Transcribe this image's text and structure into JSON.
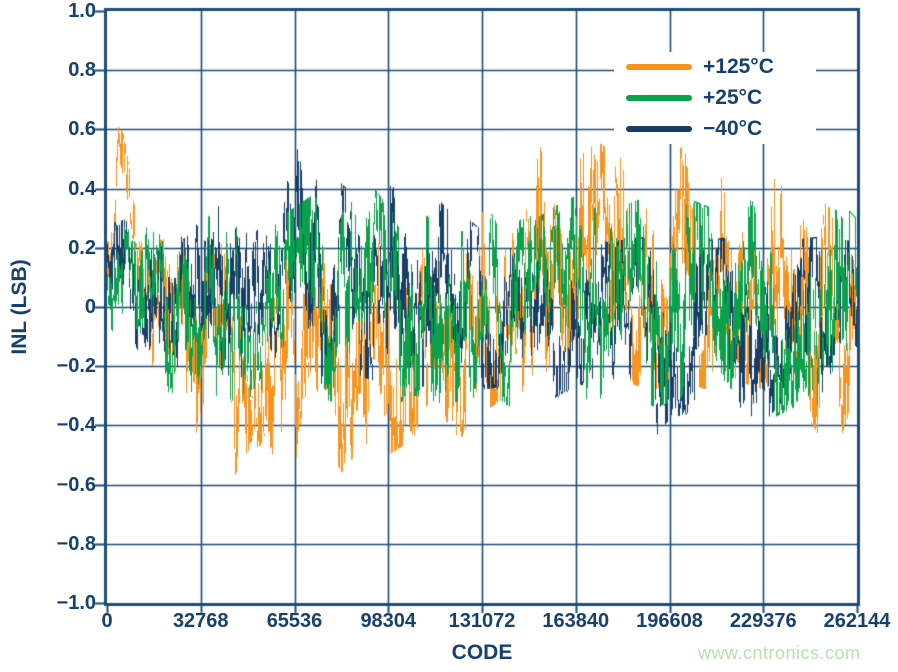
{
  "page": {
    "watermark_text": "www.cntronics.com",
    "watermark_color": "#b9dfb2"
  },
  "chart_data": {
    "type": "line",
    "title": "",
    "xlabel": "CODE",
    "ylabel": "INL (LSB)",
    "xlim": [
      0,
      262144
    ],
    "ylim": [
      -1.0,
      1.0
    ],
    "grid": true,
    "legend_position": "top-right",
    "axis_color": "#1b4b78",
    "text_color": "#16416f",
    "background_color": "#ffffff",
    "xticks": {
      "values": [
        0,
        32768,
        65536,
        98304,
        131072,
        163840,
        196608,
        229376,
        262144
      ],
      "labels": [
        "0",
        "32768",
        "65536",
        "98304",
        "131072",
        "163840",
        "196608",
        "229376",
        "262144"
      ]
    },
    "yticks": {
      "values": [
        1.0,
        0.8,
        0.6,
        0.4,
        0.2,
        0,
        -0.2,
        -0.4,
        -0.6,
        -0.8,
        -1.0
      ],
      "labels": [
        "1.0",
        "0.8",
        "0.6",
        "0.4",
        "0.2",
        "0",
        "−0.2",
        "−0.4",
        "−0.6",
        "−0.8",
        "−1.0"
      ]
    },
    "draw_order": [
      0,
      2,
      1
    ],
    "series": [
      {
        "name": "+125°C",
        "color": "#F7941E",
        "seed": 101,
        "envelope_upper": [
          [
            0,
            0.3
          ],
          [
            2000,
            0.44
          ],
          [
            4000,
            0.62
          ],
          [
            6000,
            0.58
          ],
          [
            9000,
            0.4
          ],
          [
            12000,
            0.26
          ],
          [
            16000,
            0.22
          ],
          [
            24000,
            0.24
          ],
          [
            32768,
            0.2
          ],
          [
            45000,
            0.22
          ],
          [
            55000,
            0.18
          ],
          [
            65536,
            0.25
          ],
          [
            75000,
            0.2
          ],
          [
            85000,
            0.22
          ],
          [
            98304,
            0.3
          ],
          [
            110000,
            0.26
          ],
          [
            120000,
            0.33
          ],
          [
            131072,
            0.4
          ],
          [
            140000,
            0.46
          ],
          [
            151000,
            0.55
          ],
          [
            160000,
            0.48
          ],
          [
            170000,
            0.57
          ],
          [
            180000,
            0.5
          ],
          [
            190000,
            0.46
          ],
          [
            196608,
            0.52
          ],
          [
            205000,
            0.56
          ],
          [
            215000,
            0.48
          ],
          [
            225000,
            0.53
          ],
          [
            235000,
            0.46
          ],
          [
            245000,
            0.42
          ],
          [
            252000,
            0.34
          ],
          [
            258000,
            0.3
          ],
          [
            262144,
            0.28
          ]
        ],
        "envelope_lower": [
          [
            0,
            0.05
          ],
          [
            4000,
            0.15
          ],
          [
            9000,
            0.05
          ],
          [
            14000,
            -0.2
          ],
          [
            20000,
            -0.38
          ],
          [
            28000,
            -0.46
          ],
          [
            36000,
            -0.52
          ],
          [
            42000,
            -0.63
          ],
          [
            48000,
            -0.5
          ],
          [
            55000,
            -0.46
          ],
          [
            62000,
            -0.58
          ],
          [
            68000,
            -0.48
          ],
          [
            75000,
            -0.43
          ],
          [
            82000,
            -0.56
          ],
          [
            90000,
            -0.46
          ],
          [
            98304,
            -0.5
          ],
          [
            107000,
            -0.45
          ],
          [
            114000,
            -0.42
          ],
          [
            123000,
            -0.45
          ],
          [
            131072,
            -0.36
          ],
          [
            140000,
            -0.3
          ],
          [
            150000,
            -0.28
          ],
          [
            160000,
            -0.25
          ],
          [
            170000,
            -0.28
          ],
          [
            180000,
            -0.25
          ],
          [
            190000,
            -0.28
          ],
          [
            200000,
            -0.25
          ],
          [
            210000,
            -0.28
          ],
          [
            220000,
            -0.25
          ],
          [
            230000,
            -0.28
          ],
          [
            240000,
            -0.3
          ],
          [
            248000,
            -0.42
          ],
          [
            254000,
            -0.51
          ],
          [
            258000,
            -0.4
          ],
          [
            262144,
            -0.42
          ]
        ]
      },
      {
        "name": "+25°C",
        "color": "#0BA14C",
        "seed": 202,
        "envelope_upper": [
          [
            0,
            0.3
          ],
          [
            8000,
            0.26
          ],
          [
            16000,
            0.28
          ],
          [
            24000,
            0.26
          ],
          [
            32768,
            0.3
          ],
          [
            41000,
            0.34
          ],
          [
            50000,
            0.28
          ],
          [
            60000,
            0.3
          ],
          [
            72000,
            0.38
          ],
          [
            80000,
            0.3
          ],
          [
            92000,
            0.42
          ],
          [
            98304,
            0.34
          ],
          [
            110000,
            0.3
          ],
          [
            120000,
            0.34
          ],
          [
            131072,
            0.3
          ],
          [
            140000,
            0.34
          ],
          [
            150000,
            0.3
          ],
          [
            160000,
            0.36
          ],
          [
            170000,
            0.4
          ],
          [
            180000,
            0.34
          ],
          [
            190000,
            0.38
          ],
          [
            196608,
            0.34
          ],
          [
            205000,
            0.36
          ],
          [
            215000,
            0.32
          ],
          [
            225000,
            0.36
          ],
          [
            235000,
            0.32
          ],
          [
            245000,
            0.3
          ],
          [
            253000,
            0.37
          ],
          [
            258000,
            0.34
          ],
          [
            262144,
            0.3
          ]
        ],
        "envelope_lower": [
          [
            0,
            -0.05
          ],
          [
            6000,
            -0.15
          ],
          [
            14000,
            -0.25
          ],
          [
            24000,
            -0.3
          ],
          [
            32768,
            -0.28
          ],
          [
            42000,
            -0.32
          ],
          [
            52000,
            -0.3
          ],
          [
            62000,
            -0.34
          ],
          [
            72000,
            -0.3
          ],
          [
            82000,
            -0.33
          ],
          [
            92000,
            -0.3
          ],
          [
            98304,
            -0.34
          ],
          [
            108000,
            -0.3
          ],
          [
            118000,
            -0.33
          ],
          [
            131072,
            -0.3
          ],
          [
            142000,
            -0.34
          ],
          [
            152000,
            -0.35
          ],
          [
            162000,
            -0.3
          ],
          [
            172000,
            -0.32
          ],
          [
            182000,
            -0.3
          ],
          [
            192000,
            -0.34
          ],
          [
            202000,
            -0.3
          ],
          [
            212000,
            -0.33
          ],
          [
            222000,
            -0.3
          ],
          [
            232000,
            -0.38
          ],
          [
            240000,
            -0.34
          ],
          [
            248000,
            -0.36
          ],
          [
            255000,
            -0.44
          ],
          [
            262144,
            -0.38
          ]
        ]
      },
      {
        "name": "−40°C",
        "color": "#173E66",
        "seed": 303,
        "envelope_upper": [
          [
            0,
            0.28
          ],
          [
            8000,
            0.3
          ],
          [
            16000,
            0.34
          ],
          [
            24000,
            0.32
          ],
          [
            33000,
            0.42
          ],
          [
            40000,
            0.45
          ],
          [
            48000,
            0.4
          ],
          [
            56000,
            0.34
          ],
          [
            62000,
            0.38
          ],
          [
            66000,
            0.55
          ],
          [
            70000,
            0.43
          ],
          [
            77000,
            0.46
          ],
          [
            84000,
            0.4
          ],
          [
            90000,
            0.44
          ],
          [
            98304,
            0.4
          ],
          [
            103000,
            0.47
          ],
          [
            110000,
            0.44
          ],
          [
            118000,
            0.34
          ],
          [
            126000,
            0.3
          ],
          [
            131072,
            0.26
          ],
          [
            145000,
            0.24
          ],
          [
            160000,
            0.26
          ],
          [
            175000,
            0.22
          ],
          [
            190000,
            0.24
          ],
          [
            205000,
            0.22
          ],
          [
            220000,
            0.24
          ],
          [
            235000,
            0.22
          ],
          [
            250000,
            0.24
          ],
          [
            262144,
            0.22
          ]
        ],
        "envelope_lower": [
          [
            0,
            -0.1
          ],
          [
            10000,
            -0.18
          ],
          [
            20000,
            -0.22
          ],
          [
            32768,
            -0.2
          ],
          [
            45000,
            -0.24
          ],
          [
            60000,
            -0.22
          ],
          [
            75000,
            -0.26
          ],
          [
            90000,
            -0.24
          ],
          [
            105000,
            -0.28
          ],
          [
            120000,
            -0.25
          ],
          [
            131072,
            -0.28
          ],
          [
            145000,
            -0.26
          ],
          [
            156000,
            -0.31
          ],
          [
            165000,
            -0.26
          ],
          [
            175000,
            -0.3
          ],
          [
            183000,
            -0.43
          ],
          [
            190000,
            -0.46
          ],
          [
            196608,
            -0.38
          ],
          [
            205000,
            -0.35
          ],
          [
            212000,
            -0.41
          ],
          [
            220000,
            -0.36
          ],
          [
            228000,
            -0.41
          ],
          [
            236000,
            -0.32
          ],
          [
            245000,
            -0.3
          ],
          [
            254000,
            -0.28
          ],
          [
            262144,
            -0.25
          ]
        ]
      }
    ]
  }
}
